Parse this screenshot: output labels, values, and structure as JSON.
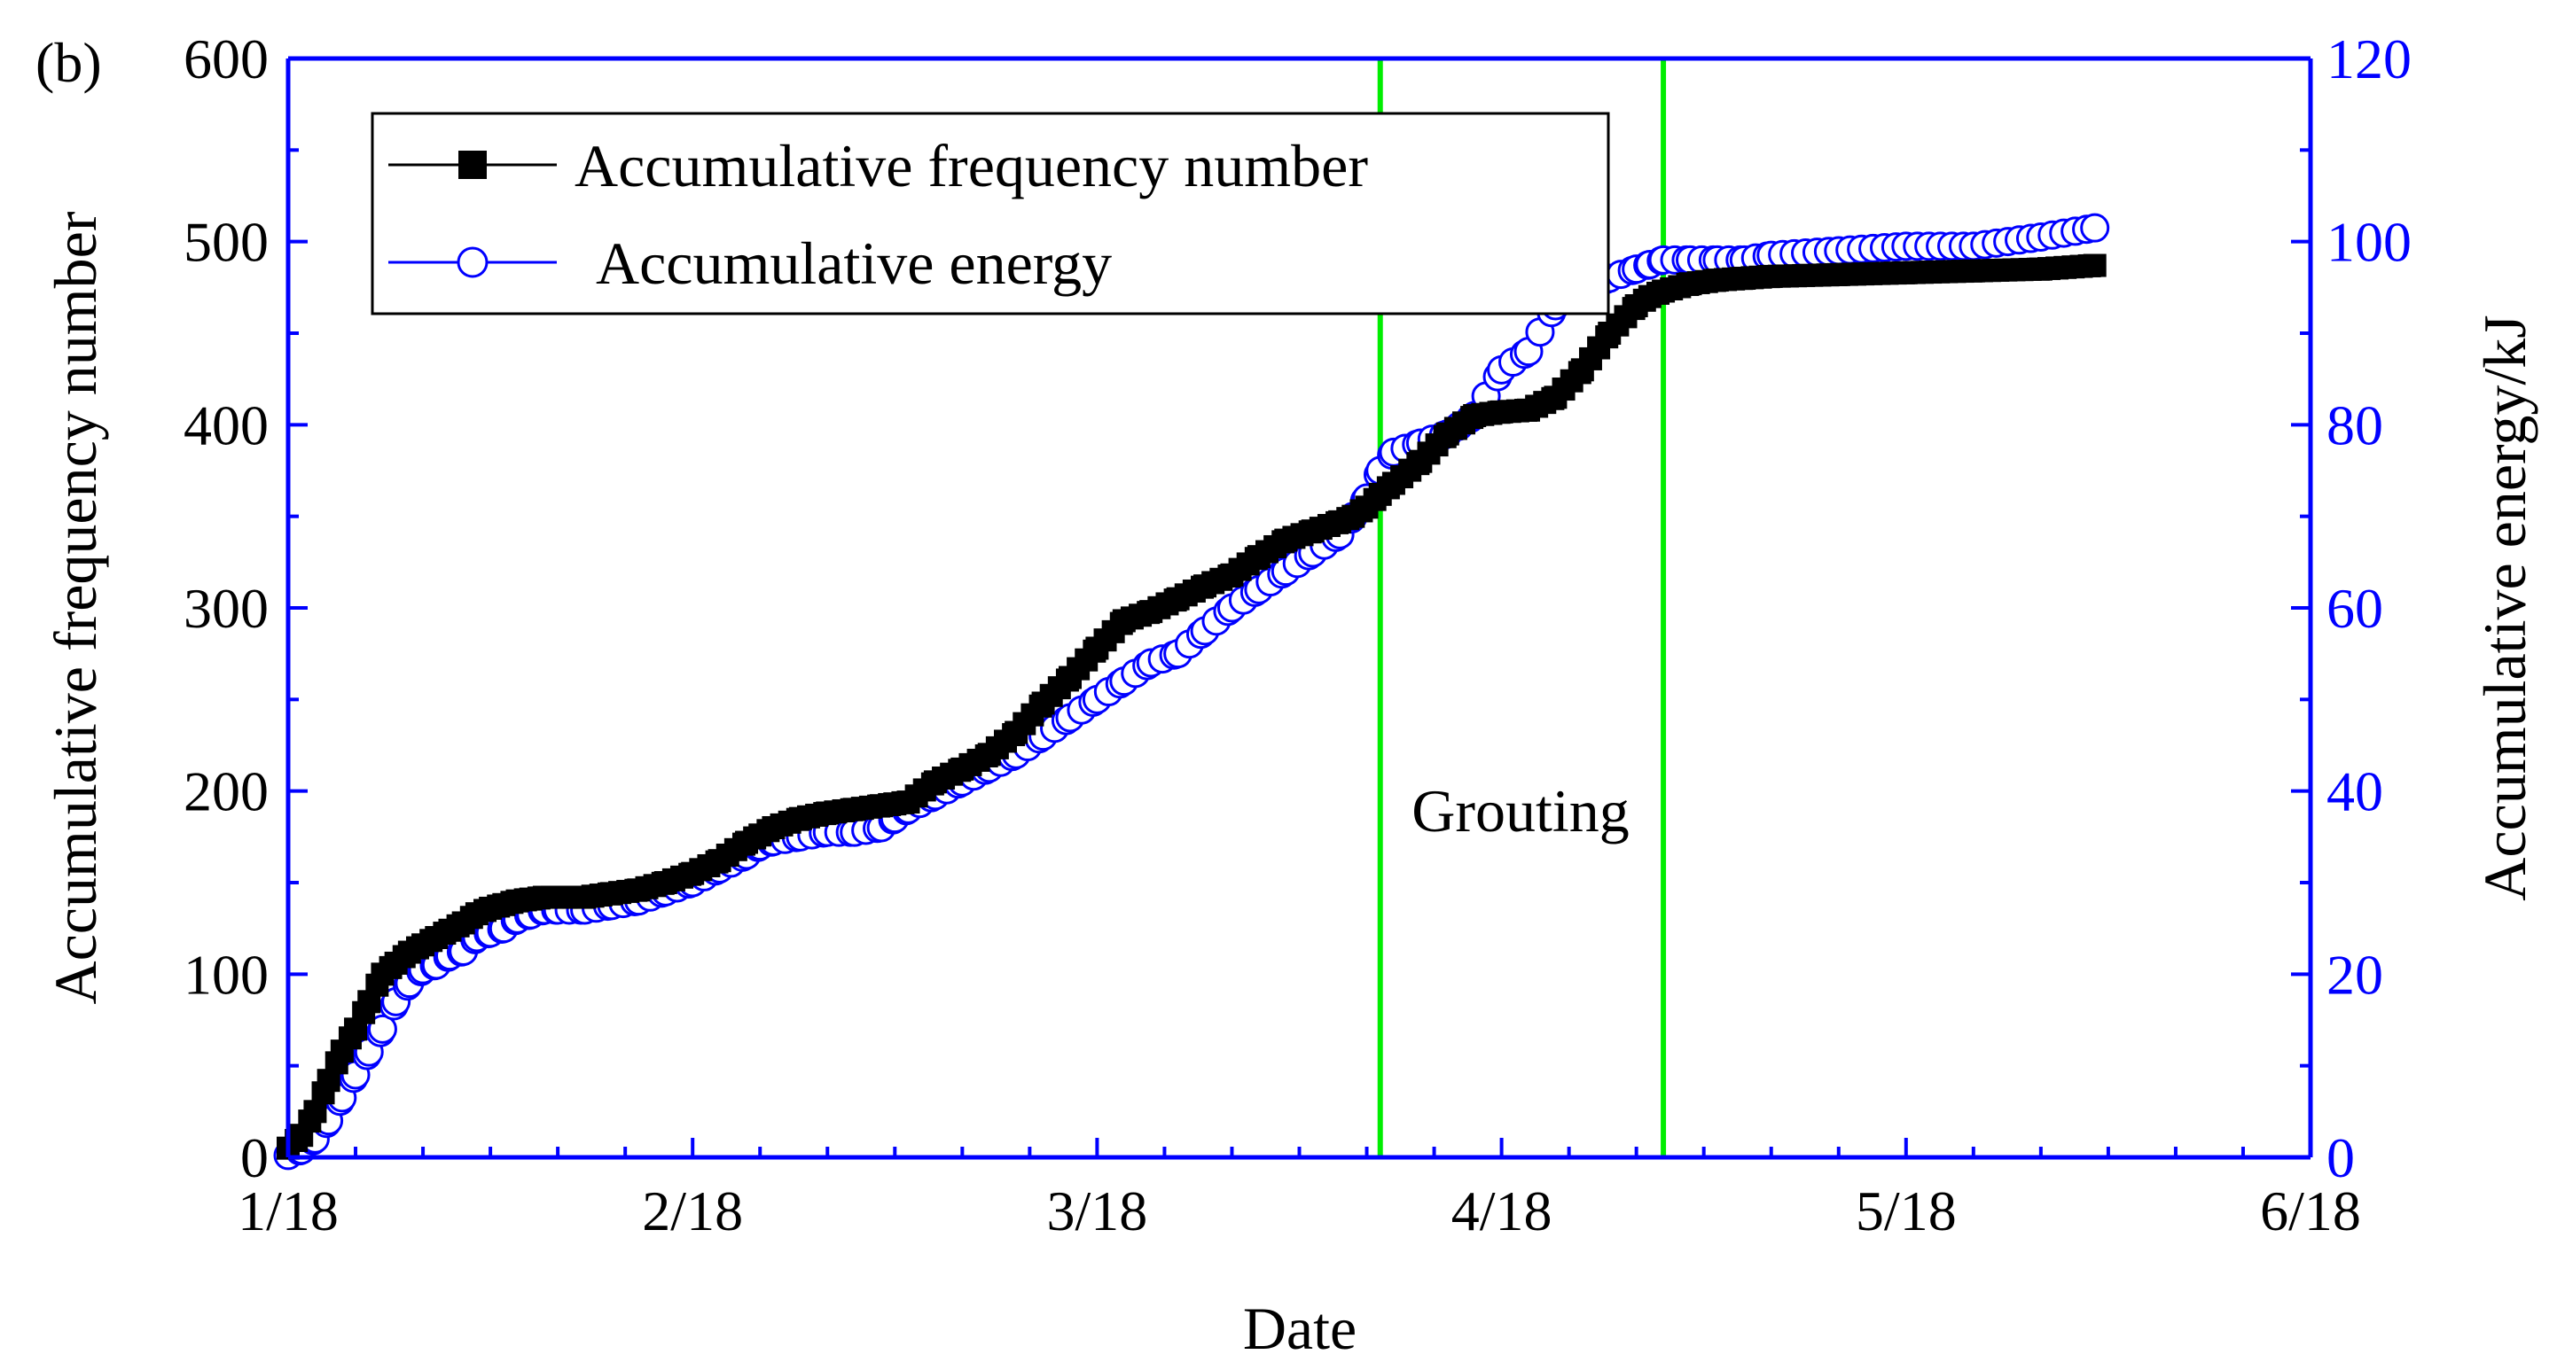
{
  "chart_data": {
    "type": "line",
    "panel_label": "(b)",
    "xlabel": "Date",
    "ylabel_left": "Accumulative frequency number",
    "ylabel_right": "Accumulative energy/kJ",
    "x_ticks": [
      "1/18",
      "2/18",
      "3/18",
      "4/18",
      "5/18",
      "6/18"
    ],
    "x_range_days": [
      0,
      150
    ],
    "ylim_left": [
      0,
      600
    ],
    "ylim_right": [
      0,
      120
    ],
    "y_ticks_left": [
      0,
      100,
      200,
      300,
      400,
      500,
      600
    ],
    "y_ticks_right": [
      0,
      20,
      40,
      60,
      80,
      100,
      120
    ],
    "colors": {
      "frequency": "#000000",
      "energy": "#0000ff",
      "axis_right": "#0000ff",
      "vlines": "#00ee00"
    },
    "legend": [
      {
        "label": "Accumulative frequency number",
        "marker": "square",
        "color": "#000000"
      },
      {
        "label": "Accumulative energy",
        "marker": "circle-open",
        "color": "#0000ff"
      }
    ],
    "annotations": [
      {
        "text": "Grouting",
        "from_day": 81,
        "to_day": 102
      }
    ],
    "vertical_lines_day": [
      81,
      102
    ],
    "series": [
      {
        "name": "Accumulative frequency number",
        "axis": "left",
        "x": [
          0,
          1,
          2,
          3,
          4,
          5,
          6,
          7,
          8,
          9,
          10,
          11,
          12,
          13,
          14,
          15,
          16,
          17,
          18,
          19,
          20,
          22,
          24,
          26,
          28,
          30,
          32,
          34,
          35,
          36,
          38,
          40,
          42,
          44,
          45,
          46,
          48,
          50,
          52,
          54,
          56,
          58,
          60,
          62,
          64,
          66,
          68,
          70,
          72,
          74,
          76,
          78,
          79,
          80,
          81,
          82,
          84,
          86,
          88,
          90,
          92,
          94,
          96,
          98,
          100,
          101,
          102,
          104,
          106,
          108,
          110,
          115,
          120,
          125,
          130,
          134
        ],
        "y": [
          5,
          12,
          25,
          42,
          58,
          70,
          85,
          100,
          106,
          112,
          116,
          120,
          124,
          128,
          133,
          136,
          138,
          140,
          141,
          142,
          142,
          142,
          144,
          146,
          150,
          155,
          162,
          172,
          176,
          180,
          185,
          188,
          190,
          192,
          193,
          194,
          205,
          212,
          220,
          232,
          248,
          262,
          278,
          293,
          298,
          305,
          312,
          318,
          328,
          337,
          342,
          347,
          350,
          355,
          362,
          368,
          380,
          395,
          405,
          407,
          408,
          415,
          430,
          450,
          465,
          470,
          473,
          477,
          479,
          480,
          481,
          482,
          483,
          484,
          485,
          487
        ]
      },
      {
        "name": "Accumulative energy",
        "axis": "right",
        "x": [
          0,
          1,
          2,
          3,
          4,
          5,
          6,
          7,
          8,
          9,
          10,
          11,
          12,
          13,
          14,
          15,
          16,
          17,
          18,
          19,
          20,
          22,
          24,
          26,
          28,
          30,
          32,
          34,
          35,
          36,
          38,
          40,
          42,
          44,
          45,
          46,
          48,
          50,
          52,
          54,
          56,
          58,
          60,
          62,
          64,
          66,
          68,
          70,
          72,
          74,
          76,
          78,
          79,
          80,
          81,
          82,
          84,
          86,
          88,
          90,
          92,
          94,
          96,
          98,
          100,
          101,
          102,
          104,
          106,
          108,
          110,
          115,
          120,
          125,
          130,
          134
        ],
        "y": [
          0.2,
          0.8,
          2.0,
          4.0,
          6.5,
          9.0,
          11.5,
          14.0,
          17.0,
          19.0,
          20.5,
          21.0,
          22.0,
          22.5,
          24.0,
          24.5,
          25.0,
          26.0,
          26.5,
          27.0,
          27.0,
          27.0,
          27.5,
          28.0,
          29.0,
          30.0,
          31.5,
          33.0,
          34.0,
          34.5,
          35.0,
          35.5,
          35.5,
          36.0,
          37.0,
          38.0,
          39.5,
          41.0,
          42.5,
          44.0,
          46.0,
          48.0,
          50.0,
          52.0,
          54.0,
          55.0,
          57.5,
          60.0,
          62.0,
          64.0,
          66.0,
          68.0,
          70.0,
          72.0,
          75.0,
          77.0,
          78.0,
          79.0,
          81.0,
          86.0,
          88.0,
          93.0,
          95.0,
          96.0,
          97.0,
          97.5,
          98.0,
          98.0,
          98.0,
          98.0,
          98.5,
          99.0,
          99.5,
          99.5,
          100.5,
          101.5
        ]
      }
    ]
  }
}
